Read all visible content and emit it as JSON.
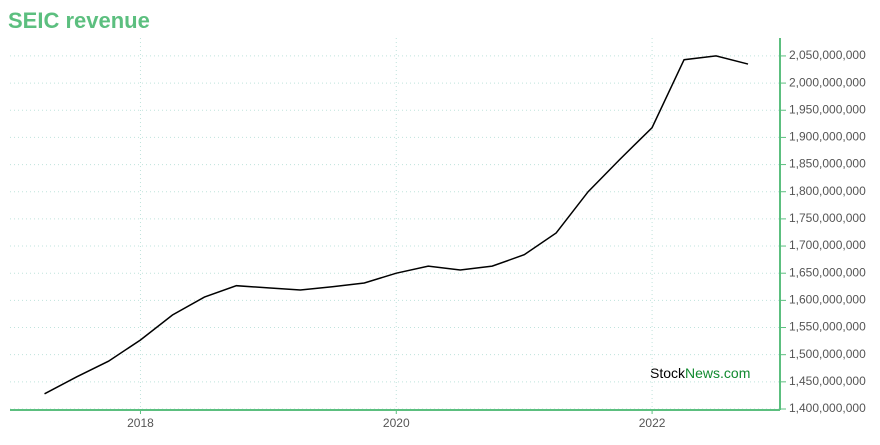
{
  "chart_data": {
    "type": "line",
    "title": "SEIC revenue",
    "x": [
      2017.25,
      2017.5,
      2017.75,
      2018,
      2018.25,
      2018.5,
      2018.75,
      2019,
      2019.25,
      2019.5,
      2019.75,
      2020,
      2020.25,
      2020.5,
      2020.75,
      2021,
      2021.25,
      2021.5,
      2021.75,
      2022,
      2022.25,
      2022.5,
      2022.75
    ],
    "series": [
      {
        "name": "SEIC revenue",
        "color": "#000000",
        "values": [
          1428000000,
          1459000000,
          1488000000,
          1527000000,
          1573000000,
          1606000000,
          1627000000,
          1623000000,
          1619000000,
          1625000000,
          1632000000,
          1650000000,
          1663000000,
          1656000000,
          1663000000,
          1684000000,
          1724000000,
          1800000000,
          1860000000,
          1918000000,
          2043000000,
          2050000000,
          2035000000
        ]
      }
    ],
    "xlim": [
      2016.98,
      2023
    ],
    "xticks": [
      2018,
      2020,
      2022
    ],
    "ylim": [
      1400000000,
      2083000000
    ],
    "yticks": [
      {
        "value": 1400000000,
        "label": "1,400,000,000"
      },
      {
        "value": 1450000000,
        "label": "1,450,000,000"
      },
      {
        "value": 1500000000,
        "label": "1,500,000,000"
      },
      {
        "value": 1550000000,
        "label": "1,550,000,000"
      },
      {
        "value": 1600000000,
        "label": "1,600,000,000"
      },
      {
        "value": 1650000000,
        "label": "1,650,000,000"
      },
      {
        "value": 1700000000,
        "label": "1,700,000,000"
      },
      {
        "value": 1750000000,
        "label": "1,750,000,000"
      },
      {
        "value": 1800000000,
        "label": "1,800,000,000"
      },
      {
        "value": 1850000000,
        "label": "1,850,000,000"
      },
      {
        "value": 1900000000,
        "label": "1,900,000,000"
      },
      {
        "value": 1950000000,
        "label": "1,950,000,000"
      },
      {
        "value": 2000000000,
        "label": "2,000,000,000"
      },
      {
        "value": 2050000000,
        "label": "2,050,000,000"
      }
    ],
    "grid": true,
    "watermark": [
      "Stock",
      "News.com"
    ]
  }
}
